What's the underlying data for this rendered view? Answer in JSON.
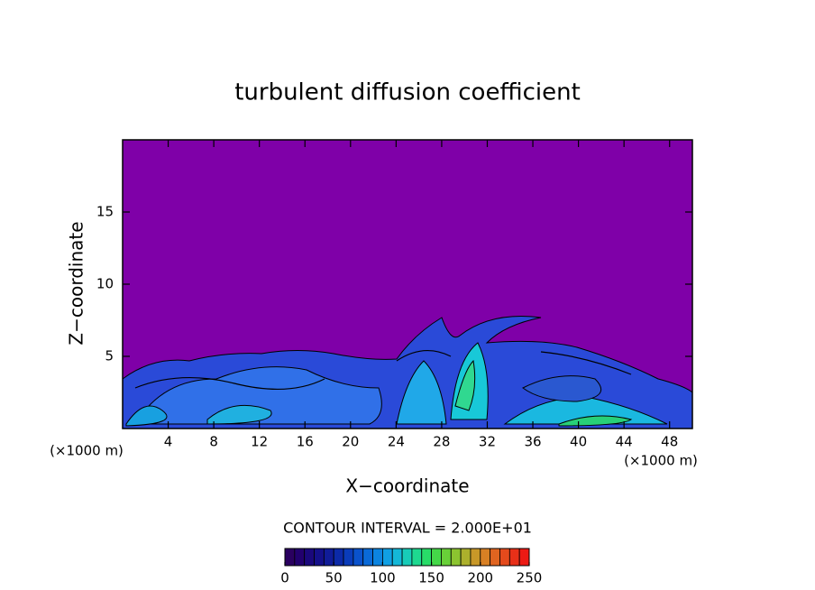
{
  "chart_data": {
    "type": "contour",
    "title": "turbulent diffusion coefficient",
    "x_label": "X−coordinate",
    "y_label": "Z−coordinate",
    "x_unit_label": "(×1000 m)",
    "y_unit_label": "(×1000 m)",
    "xlim": [
      0,
      50
    ],
    "xticks": [
      4,
      8,
      12,
      16,
      20,
      24,
      28,
      32,
      36,
      40,
      44,
      48
    ],
    "ylim": [
      0,
      20
    ],
    "yticks": [
      5,
      10,
      15
    ],
    "background_color": "#7f00a8",
    "annotation": "CONTOUR INTERVAL = 2.000E+01",
    "colorbar": {
      "lim": [
        0,
        250
      ],
      "ticks": [
        0,
        50,
        100,
        150,
        200,
        250
      ],
      "colors": [
        "#2a0060",
        "#22006e",
        "#1a087c",
        "#14108a",
        "#101c98",
        "#0c2aa8",
        "#0a3cba",
        "#0a52cc",
        "#0a6ad8",
        "#0c84e0",
        "#10a0e4",
        "#14b8d8",
        "#18ccb8",
        "#1ed890",
        "#28dc68",
        "#44d848",
        "#68d038",
        "#8cc430",
        "#acb02c",
        "#c89828",
        "#d88024",
        "#e06420",
        "#e44a1c",
        "#e83018",
        "#ec1a14"
      ]
    }
  }
}
